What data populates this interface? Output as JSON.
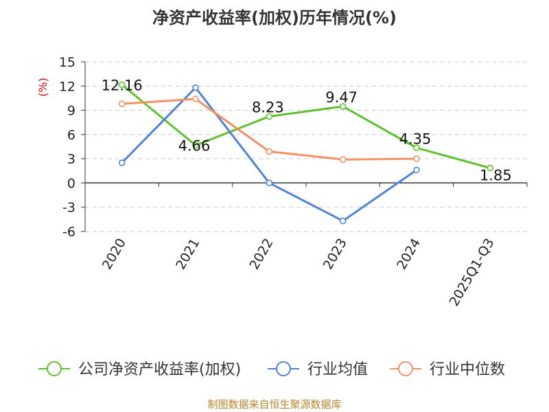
{
  "chart_data": {
    "type": "line",
    "title": "净资产收益率(加权)历年情况(%)",
    "ylabel": "(%)",
    "xlabel": "",
    "categories": [
      "2020",
      "2021",
      "2022",
      "2023",
      "2024",
      "2025Q1-Q3"
    ],
    "yticks": [
      "15",
      "12",
      "9",
      "6",
      "3",
      "0",
      "-3",
      "-6"
    ],
    "ylim": [
      -6,
      15
    ],
    "grid": true,
    "legend_position": "bottom",
    "series": [
      {
        "name": "公司净资产收益率(加权)",
        "color": "#5cc12a",
        "values": [
          12.16,
          4.66,
          8.23,
          9.47,
          4.35,
          1.85
        ],
        "labels": [
          "12.16",
          "4.66",
          "8.23",
          "9.47",
          "4.35",
          "1.85"
        ]
      },
      {
        "name": "行业均值",
        "color": "#4f82d9",
        "values": [
          2.5,
          11.8,
          0.0,
          -4.7,
          1.6,
          null
        ]
      },
      {
        "name": "行业中位数",
        "color": "#f59066",
        "values": [
          9.8,
          10.4,
          3.9,
          2.9,
          3.0,
          null
        ]
      }
    ]
  },
  "footer": {
    "source": "制图数据来自恒生聚源数据库"
  }
}
